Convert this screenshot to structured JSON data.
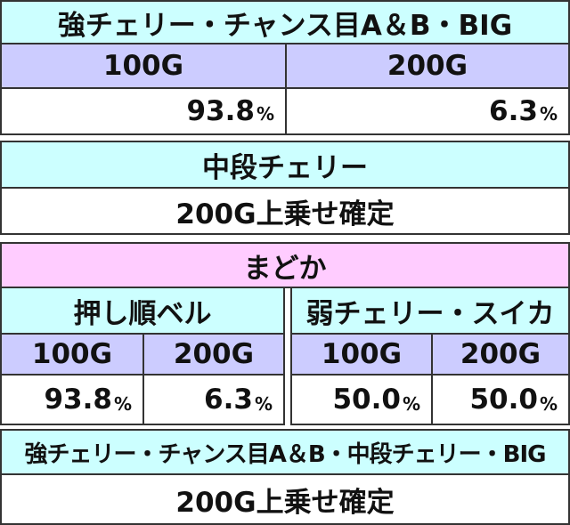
{
  "table1": {
    "header": "強チェリー・チャンス目A＆B・BIG",
    "columns": [
      "100G",
      "200G"
    ],
    "values": [
      {
        "value": "93.8",
        "unit": "%"
      },
      {
        "value": "6.3",
        "unit": "%"
      }
    ]
  },
  "table2": {
    "header": "中段チェリー",
    "result": "200G上乗せ確定"
  },
  "table3": {
    "header": "まどか",
    "left": {
      "header": "押し順ベル",
      "columns": [
        "100G",
        "200G"
      ],
      "values": [
        {
          "value": "93.8",
          "unit": "%"
        },
        {
          "value": "6.3",
          "unit": "%"
        }
      ]
    },
    "right": {
      "header": "弱チェリー・スイカ",
      "columns": [
        "100G",
        "200G"
      ],
      "values": [
        {
          "value": "50.0",
          "unit": "%"
        },
        {
          "value": "50.0",
          "unit": "%"
        }
      ]
    }
  },
  "table4": {
    "header": "強チェリー・チャンス目A＆B・中段チェリー・BIG",
    "result": "200G上乗せ確定"
  }
}
